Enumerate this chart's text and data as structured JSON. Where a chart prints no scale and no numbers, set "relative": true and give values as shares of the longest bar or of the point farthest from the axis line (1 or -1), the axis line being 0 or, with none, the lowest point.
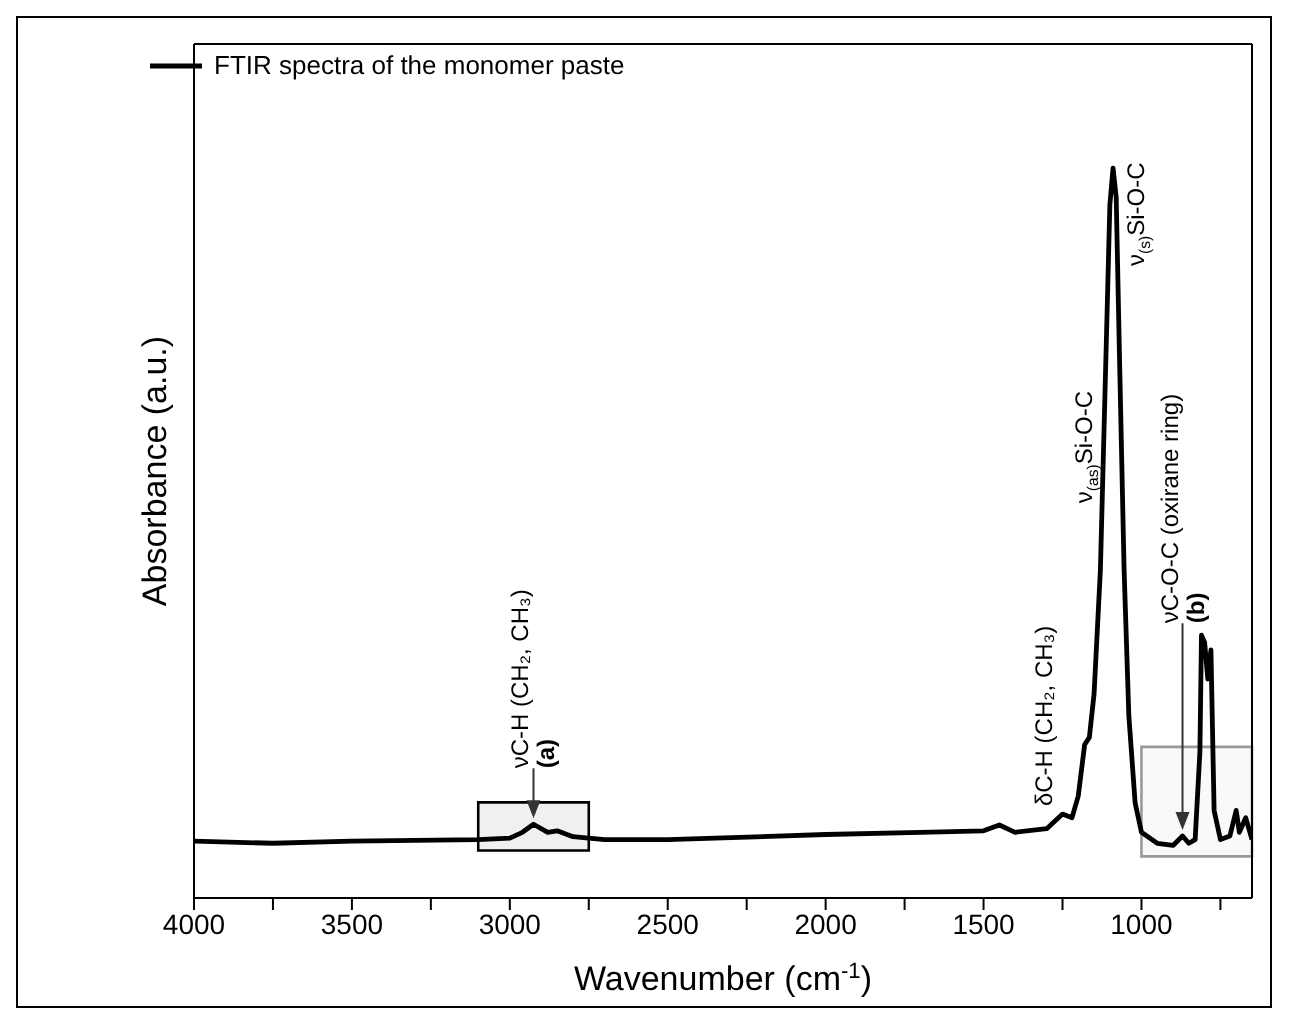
{
  "chart_data": {
    "type": "line",
    "relative": true,
    "xlabel": "Wavenumber (cm$^{-1}$)",
    "ylabel": "Absorbance (a.u.)",
    "legend": "top left",
    "grid": false,
    "marker": "none",
    "line_style": "solid",
    "xlim": [
      4000,
      650
    ],
    "xticks": [
      4000,
      {
        "value": 3750,
        "label": null
      },
      3500,
      {
        "value": 3250,
        "label": null
      },
      3000,
      {
        "value": 2750,
        "label": null
      },
      2500,
      {
        "value": 2250,
        "label": null
      },
      2000,
      {
        "value": 1750,
        "label": null
      },
      1500,
      {
        "value": 1250,
        "label": null
      },
      1000,
      {
        "value": 750,
        "label": null
      }
    ],
    "x": [
      4000,
      3750,
      3500,
      3100,
      3000,
      2960,
      2925,
      2880,
      2850,
      2800,
      2700,
      2500,
      2350,
      2000,
      1700,
      1500,
      1450,
      1400,
      1300,
      1250,
      1220,
      1200,
      1180,
      1165,
      1150,
      1130,
      1115,
      1100,
      1090,
      1080,
      1070,
      1055,
      1040,
      1020,
      1000,
      950,
      900,
      870,
      850,
      830,
      815,
      810,
      800,
      790,
      780,
      770,
      750,
      720,
      700,
      690,
      670,
      650
    ],
    "series": [
      {
        "name": "FTIR spectra of the monomer paste",
        "color": "#000000",
        "values": [
          0.078,
          0.075,
          0.078,
          0.08,
          0.082,
          0.09,
          0.101,
          0.09,
          0.092,
          0.084,
          0.08,
          0.08,
          0.082,
          0.087,
          0.09,
          0.092,
          0.1,
          0.09,
          0.095,
          0.115,
          0.11,
          0.14,
          0.21,
          0.22,
          0.28,
          0.45,
          0.7,
          0.95,
          1.0,
          0.96,
          0.75,
          0.45,
          0.25,
          0.13,
          0.09,
          0.075,
          0.072,
          0.085,
          0.075,
          0.08,
          0.2,
          0.36,
          0.35,
          0.3,
          0.34,
          0.12,
          0.08,
          0.085,
          0.12,
          0.09,
          0.11,
          0.08
        ]
      }
    ],
    "bands": [
      {
        "axis": "x",
        "from": 3100,
        "to": 2750,
        "color": "#000000"
      },
      {
        "axis": "x",
        "from": 1000,
        "to": 650,
        "color": "#999999"
      }
    ],
    "annotations": [
      {
        "text": "νC-H (CH₂, CH₃)",
        "x": 2925,
        "y": 0.101
      },
      {
        "text": "(a)",
        "x": 2925,
        "y": 0.101
      },
      {
        "text": "δC-H (CH₂, CH₃)",
        "x": 1250,
        "y": 0.115
      },
      {
        "text": "ν$_{(as)}$Si-O-C",
        "x": 1125,
        "y": 0.53
      },
      {
        "text": "ν$_{(s)}$Si-O-C",
        "x": 1075,
        "y": 0.855
      },
      {
        "text": "νC-O-C (oxirane ring)",
        "x": 870,
        "y": 0.085
      },
      {
        "text": "(b)",
        "x": 870,
        "y": 0.085
      }
    ]
  }
}
